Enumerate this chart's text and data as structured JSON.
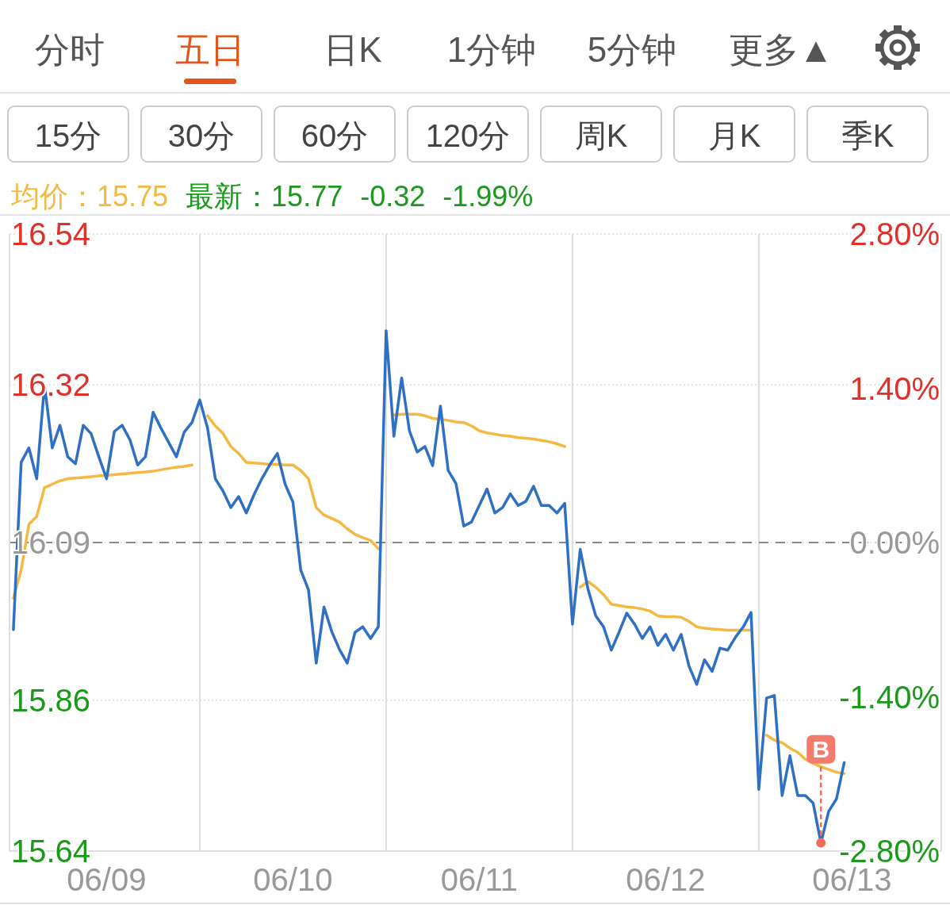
{
  "chart_data": {
    "type": "line",
    "categories": [
      null,
      null,
      null,
      null,
      null,
      null,
      null,
      null,
      null,
      null,
      null,
      null,
      "06/09",
      null,
      null,
      null,
      null,
      null,
      null,
      null,
      null,
      null,
      null,
      null,
      null,
      null,
      null,
      null,
      null,
      null,
      null,
      null,
      null,
      null,
      null,
      null,
      "06/10",
      null,
      null,
      null,
      null,
      null,
      null,
      null,
      null,
      null,
      null,
      null,
      null,
      null,
      null,
      null,
      null,
      null,
      null,
      null,
      null,
      null,
      null,
      null,
      "06/11",
      null,
      null,
      null,
      null,
      null,
      null,
      null,
      null,
      null,
      null,
      null,
      null,
      null,
      null,
      null,
      null,
      null,
      null,
      null,
      null,
      null,
      null,
      null,
      "06/12",
      null,
      null,
      null,
      null,
      null,
      null,
      null,
      null,
      null,
      null,
      null,
      null,
      null,
      null,
      null,
      null,
      null,
      null,
      null,
      null,
      null,
      null,
      null,
      "06/13",
      null,
      null,
      null,
      null,
      null,
      null,
      null,
      null,
      null,
      null,
      null
    ],
    "ylim": [
      15.64,
      16.54
    ],
    "yticks": [
      16.54,
      16.32,
      16.09,
      15.86,
      15.64
    ],
    "y2lim": [
      -2.8,
      2.8
    ],
    "y2ticks": [
      {
        "value": 2.8,
        "label": "2.80%"
      },
      {
        "value": 1.4,
        "label": "1.40%"
      },
      {
        "value": 0,
        "label": "0.00%"
      },
      {
        "value": -1.4,
        "label": "-1.40%"
      },
      {
        "value": -2.8,
        "label": "-2.80%"
      }
    ],
    "grid": true,
    "ref_lines": [
      {
        "axis": "y",
        "value": 16.09,
        "color": "#888888",
        "line_style": "dashed"
      }
    ],
    "series": [
      {
        "color": "#2f6fc4",
        "values": [
          15.963,
          16.207,
          16.228,
          16.183,
          16.32,
          16.228,
          16.261,
          16.215,
          16.205,
          16.261,
          16.249,
          16.215,
          16.183,
          16.252,
          16.261,
          16.24,
          16.203,
          16.215,
          16.28,
          16.257,
          16.236,
          16.215,
          16.251,
          16.265,
          16.298,
          16.257,
          16.183,
          16.165,
          16.141,
          16.157,
          16.133,
          16.16,
          16.183,
          16.203,
          16.22,
          16.175,
          16.149,
          16.05,
          16.021,
          15.914,
          15.996,
          15.96,
          15.934,
          15.914,
          15.959,
          15.967,
          15.95,
          15.967,
          16.399,
          16.245,
          16.33,
          16.253,
          16.222,
          16.23,
          16.202,
          16.289,
          16.195,
          16.176,
          16.114,
          16.12,
          16.144,
          16.168,
          16.133,
          16.141,
          16.161,
          16.144,
          16.15,
          16.172,
          16.144,
          16.144,
          16.133,
          16.147,
          15.971,
          16.08,
          16.022,
          15.983,
          15.967,
          15.933,
          15.959,
          15.987,
          15.971,
          15.95,
          15.967,
          15.94,
          15.956,
          15.933,
          15.956,
          15.91,
          15.883,
          15.919,
          15.902,
          15.936,
          15.933,
          15.952,
          15.967,
          15.988,
          15.73,
          15.863,
          15.867,
          15.721,
          15.779,
          15.721,
          15.721,
          15.71,
          15.652,
          15.698,
          15.716,
          15.769,
          null,
          null,
          null,
          null,
          null,
          null,
          null,
          null,
          null,
          null,
          null,
          null
        ]
      },
      {
        "color": "#f5b840",
        "values": [
          16.009,
          16.05,
          16.117,
          16.128,
          16.17,
          16.175,
          16.18,
          16.183,
          16.184,
          16.185,
          16.186,
          16.187,
          16.188,
          16.189,
          16.19,
          16.191,
          16.192,
          16.193,
          16.194,
          16.196,
          16.198,
          16.2,
          16.201,
          16.203,
          null,
          16.275,
          16.26,
          16.249,
          16.23,
          16.22,
          16.207,
          16.206,
          16.205,
          16.204,
          16.204,
          16.203,
          16.203,
          16.195,
          16.183,
          16.141,
          16.13,
          16.125,
          16.12,
          16.11,
          16.102,
          16.097,
          16.093,
          16.081,
          null,
          16.276,
          16.277,
          16.277,
          16.277,
          16.275,
          16.271,
          16.27,
          16.268,
          16.266,
          16.265,
          16.26,
          16.253,
          16.25,
          16.248,
          16.246,
          16.245,
          16.243,
          16.242,
          16.241,
          16.239,
          16.237,
          16.234,
          16.23,
          null,
          16.025,
          16.033,
          16.025,
          16.014,
          16.0,
          15.998,
          15.996,
          15.995,
          15.993,
          15.99,
          15.983,
          15.982,
          15.982,
          15.981,
          15.975,
          15.967,
          15.965,
          15.964,
          15.963,
          15.962,
          15.962,
          15.962,
          15.962,
          null,
          15.809,
          15.802,
          15.798,
          15.79,
          15.784,
          15.774,
          15.768,
          15.763,
          15.759,
          15.755,
          15.753,
          null,
          null,
          null,
          null,
          null,
          null,
          null,
          null,
          null,
          null,
          null,
          null
        ]
      }
    ],
    "annotations": [
      "分时",
      "五日",
      "日K",
      "1分钟",
      "5分钟",
      "更多▲",
      "15分",
      "30分",
      "60分",
      "120分",
      "周K",
      "月K",
      "季K",
      "均价：15.75",
      "最新：15.77",
      "-0.32",
      "-1.99%",
      {
        "text": "B",
        "y": 15.652
      }
    ]
  }
}
